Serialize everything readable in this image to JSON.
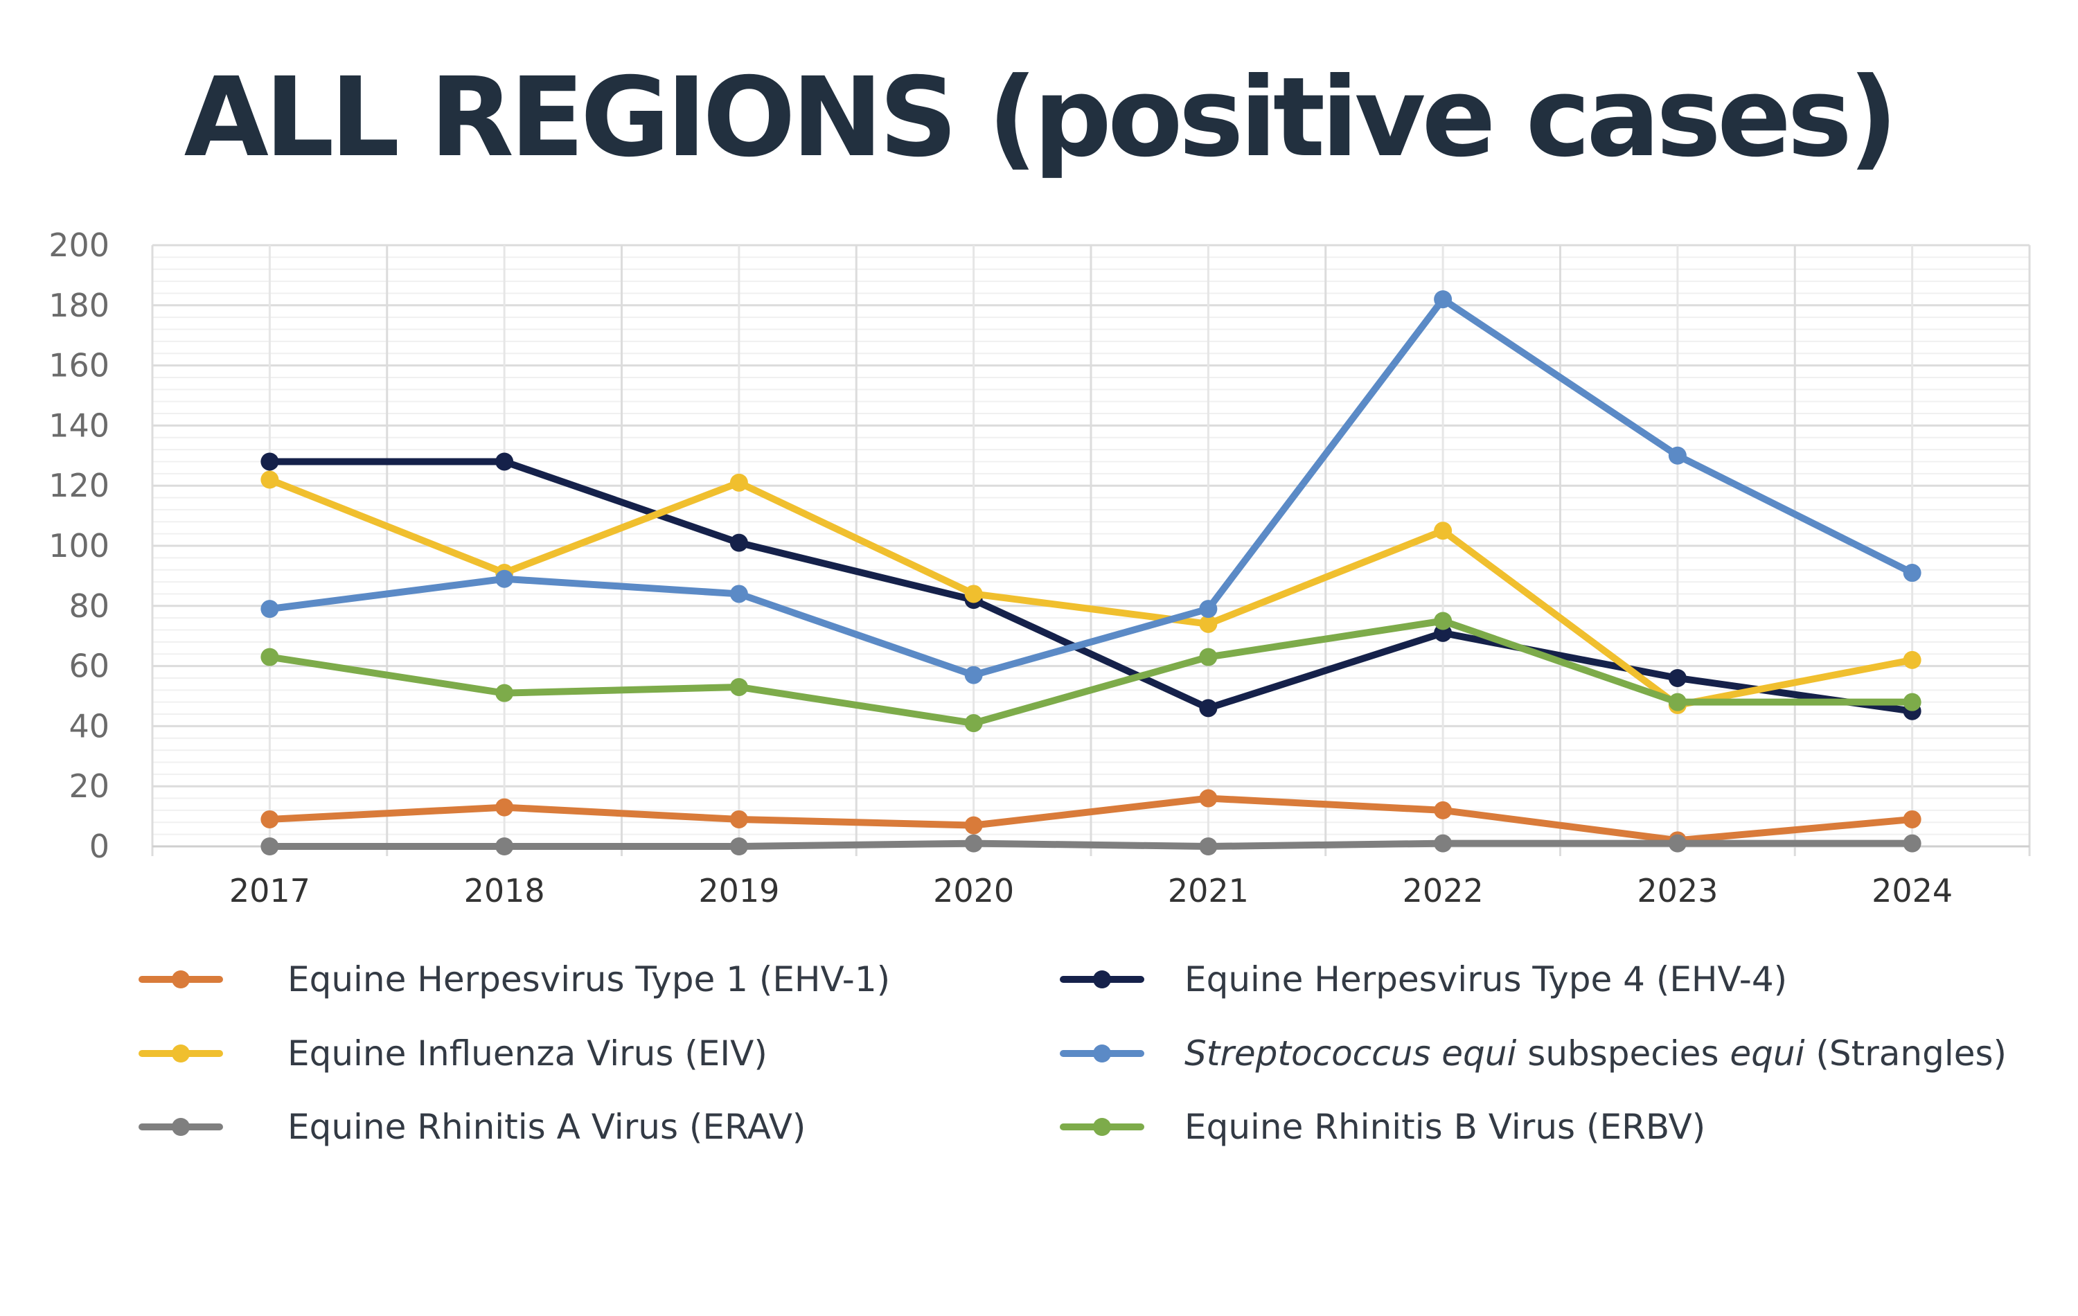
{
  "chart_data": {
    "type": "line",
    "title": "ALL REGIONS (positive cases)",
    "xlabel": "",
    "ylabel": "",
    "ylim": [
      0,
      200
    ],
    "yticks": [
      0,
      20,
      40,
      60,
      80,
      100,
      120,
      140,
      160,
      180,
      200
    ],
    "categories": [
      "2017",
      "2018",
      "2019",
      "2020",
      "2021",
      "2022",
      "2023",
      "2024"
    ],
    "grid": true,
    "legend_position": "bottom",
    "series": [
      {
        "name": "Equine Herpesvirus Type 1 (EHV-1)",
        "color": "#d97b3a",
        "values": [
          9,
          13,
          9,
          7,
          16,
          12,
          2,
          9
        ]
      },
      {
        "name": "Equine Herpesvirus Type 4 (EHV-4)",
        "color": "#15214a",
        "values": [
          128,
          128,
          101,
          82,
          46,
          71,
          56,
          45
        ]
      },
      {
        "name": "Equine Influenza Virus (EIV)",
        "color": "#f0bf2e",
        "values": [
          122,
          91,
          121,
          84,
          74,
          105,
          47,
          62
        ]
      },
      {
        "name": "Streptococcus equi subspecies equi (Strangles)",
        "color": "#5b8ac6",
        "label_parts": [
          {
            "text": "Streptococcus equi",
            "italic": true
          },
          {
            "text": " subspecies ",
            "italic": false
          },
          {
            "text": "equi",
            "italic": true
          },
          {
            "text": " (Strangles)",
            "italic": false
          }
        ],
        "values": [
          79,
          89,
          84,
          57,
          79,
          182,
          130,
          91
        ]
      },
      {
        "name": "Equine Rhinitis A Virus (ERAV)",
        "color": "#7f7f7f",
        "values": [
          0,
          0,
          0,
          1,
          0,
          1,
          1,
          1
        ]
      },
      {
        "name": "Equine Rhinitis B Virus (ERBV)",
        "color": "#7dab4a",
        "values": [
          63,
          51,
          53,
          41,
          63,
          75,
          48,
          48
        ]
      }
    ]
  }
}
